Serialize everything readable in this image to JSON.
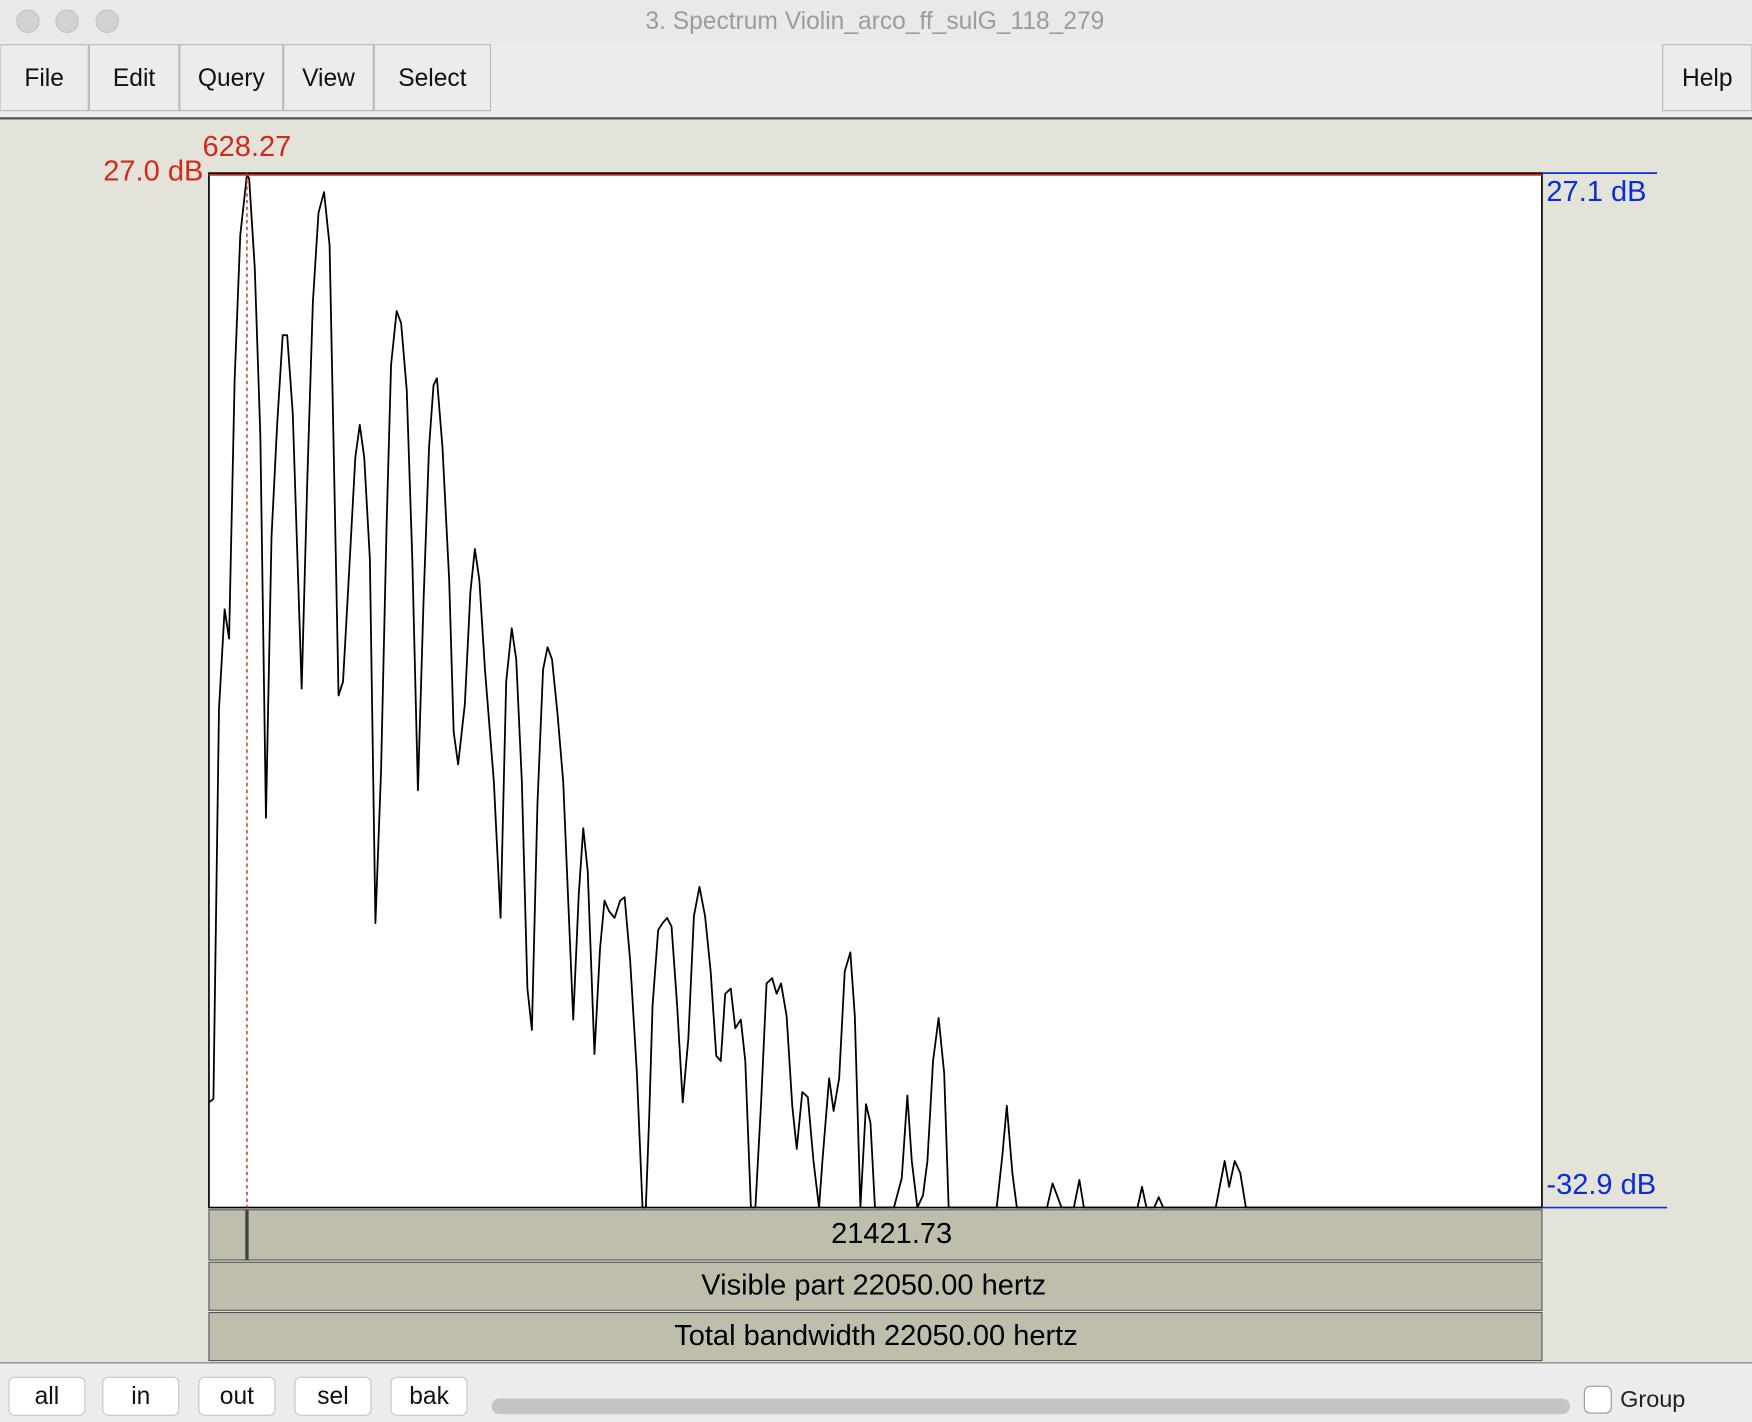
{
  "window": {
    "title": "3. Spectrum Violin_arco_ff_sulG_118_279"
  },
  "menu": [
    "File",
    "Edit",
    "Query",
    "View",
    "Select",
    "Help"
  ],
  "chart_data": {
    "type": "line",
    "color": "#000000",
    "xlim": [
      0,
      22050
    ],
    "ylim": [
      -32.9,
      27.1
    ],
    "xticks": [
      0,
      {
        "value": 22050,
        "label": "22050.00"
      }
    ],
    "yticks": [
      {
        "value": 27.1,
        "label": "27.1 dB"
      },
      {
        "value": -32.9,
        "label": "-32.9 dB"
      }
    ],
    "cursor": 628.27,
    "cursor_db": {
      "value": 27.0,
      "label": "27.0 dB"
    },
    "cursor_distance": 21421.73,
    "visible_part": "Visible part 22050.00 hertz",
    "total_bandwidth": "Total bandwidth 22050.00 hertz",
    "x": [
      0,
      74,
      166,
      259,
      333,
      425,
      518,
      628,
      665,
      758,
      850,
      943,
      1035,
      1128,
      1220,
      1294,
      1386,
      1534,
      1627,
      1719,
      1812,
      1904,
      1996,
      2070,
      2144,
      2218,
      2311,
      2421,
      2495,
      2569,
      2662,
      2754,
      2847,
      2939,
      3013,
      3105,
      3179,
      3272,
      3364,
      3457,
      3549,
      3641,
      3715,
      3771,
      3863,
      3974,
      4048,
      4122,
      4233,
      4325,
      4399,
      4473,
      4566,
      4713,
      4824,
      4917,
      5009,
      5083,
      5176,
      5268,
      5342,
      5434,
      5527,
      5601,
      5675,
      5767,
      5860,
      6026,
      6118,
      6192,
      6266,
      6377,
      6469,
      6543,
      6617,
      6710,
      6802,
      6876,
      6968,
      7079,
      7172,
      7227,
      7283,
      7338,
      7431,
      7505,
      7578,
      7652,
      7745,
      7837,
      7930,
      8022,
      8114,
      8207,
      8299,
      8392,
      8466,
      8540,
      8632,
      8706,
      8798,
      8872,
      8965,
      9039,
      9131,
      9224,
      9316,
      9390,
      9464,
      9556,
      9649,
      9723,
      9815,
      9907,
      10000,
      10092,
      10148,
      10259,
      10333,
      10425,
      10517,
      10610,
      10684,
      10776,
      10869,
      10943,
      11017,
      11331,
      11460,
      11553,
      11626,
      11719,
      11811,
      11885,
      11978,
      12070,
      12162,
      12236,
      13031,
      13124,
      13198,
      13290,
      13364,
      13863,
      13955,
      14029,
      14103,
      14307,
      14399,
      14473,
      15360,
      15434,
      15508,
      15637,
      15711,
      15785,
      16654,
      16802,
      16876,
      16968,
      17060,
      17153,
      22050
    ],
    "values": [
      -26.8,
      -26.6,
      -4.0,
      1.8,
      0.1,
      15.1,
      23.5,
      27.0,
      26.8,
      21.6,
      11.9,
      -10.3,
      6.0,
      12.5,
      17.7,
      17.7,
      13.2,
      -2.8,
      9.3,
      19.6,
      24.8,
      26.0,
      22.9,
      9.9,
      -3.2,
      -2.4,
      3.5,
      10.6,
      12.5,
      10.6,
      4.7,
      -16.4,
      -7.6,
      6.7,
      16.0,
      19.1,
      18.4,
      14.5,
      4.7,
      -8.7,
      2.2,
      11.2,
      14.8,
      15.2,
      11.2,
      3.5,
      -5.3,
      -7.2,
      -3.7,
      2.8,
      5.3,
      3.5,
      -1.7,
      -8.2,
      -16.1,
      -2.4,
      0.7,
      -1.1,
      -8.2,
      -20.2,
      -22.6,
      -9.5,
      -1.7,
      -0.4,
      -1.1,
      -4.3,
      -8.2,
      -22.0,
      -14.7,
      -10.9,
      -13.4,
      -24.0,
      -17.9,
      -15.1,
      -15.7,
      -16.1,
      -15.1,
      -14.9,
      -18.6,
      -25.1,
      -32.9,
      -32.9,
      -27.6,
      -21.2,
      -16.8,
      -16.4,
      -16.1,
      -16.6,
      -21.2,
      -26.8,
      -23.1,
      -16.0,
      -14.3,
      -16.0,
      -19.2,
      -24.1,
      -24.4,
      -20.5,
      -20.2,
      -22.5,
      -22.0,
      -24.4,
      -32.9,
      -32.9,
      -27.0,
      -19.9,
      -19.6,
      -20.5,
      -19.9,
      -21.8,
      -27.0,
      -29.5,
      -26.2,
      -26.5,
      -30.2,
      -32.9,
      -30.2,
      -25.4,
      -27.3,
      -25.4,
      -19.2,
      -18.1,
      -21.8,
      -32.9,
      -26.9,
      -28.0,
      -32.9,
      -32.9,
      -31.2,
      -26.4,
      -30.2,
      -32.9,
      -32.2,
      -30.2,
      -24.4,
      -21.9,
      -25.1,
      -32.9,
      -32.9,
      -29.9,
      -27.0,
      -30.9,
      -32.9,
      -32.9,
      -31.5,
      -32.2,
      -32.9,
      -32.9,
      -31.3,
      -32.9,
      -32.9,
      -31.7,
      -32.9,
      -32.9,
      -32.3,
      -32.9,
      -32.9,
      -30.2,
      -31.7,
      -30.2,
      -30.9,
      -32.9,
      -32.9
    ]
  },
  "buttons": [
    "all",
    "in",
    "out",
    "sel",
    "bak"
  ],
  "checkbox": "Group"
}
